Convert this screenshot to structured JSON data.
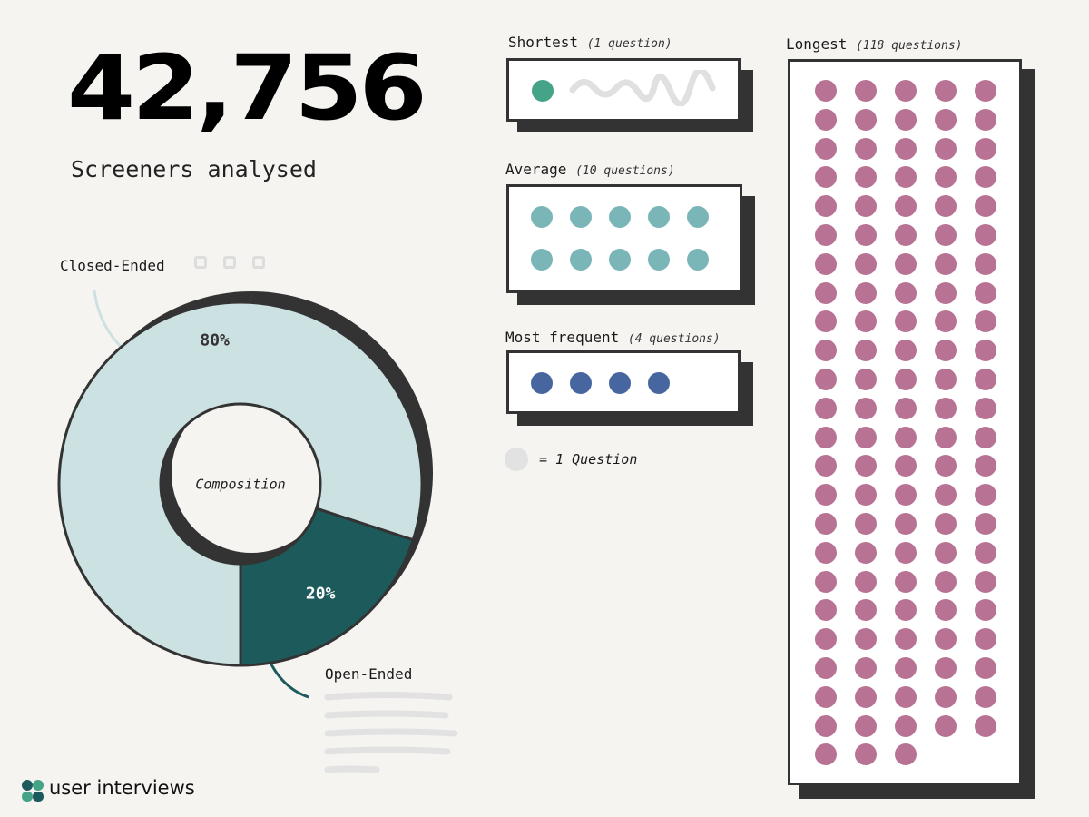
{
  "headline": {
    "number": "42,756",
    "subtitle": "Screeners analysed"
  },
  "chart_data": [
    {
      "type": "pie",
      "title": "",
      "center_label": "Composition",
      "slices": [
        {
          "label": "Closed-Ended",
          "value": 80,
          "display": "80%",
          "color": "#cce1e2"
        },
        {
          "label": "Open-Ended",
          "value": 20,
          "display": "20%",
          "color": "#1d5a5c"
        }
      ]
    },
    {
      "type": "unit",
      "unit_legend": "= 1 Question",
      "groups": [
        {
          "id": "shortest",
          "name": "Shortest",
          "note": "(1 question)",
          "count": 1,
          "color": "#45a388"
        },
        {
          "id": "average",
          "name": "Average",
          "note": "(10 questions)",
          "count": 10,
          "color": "#7ab5b8"
        },
        {
          "id": "frequent",
          "name": "Most frequent",
          "note": "(4 questions)",
          "count": 4,
          "color": "#4766a0"
        },
        {
          "id": "longest",
          "name": "Longest",
          "note": "(118 questions)",
          "count": 118,
          "color": "#b87394"
        }
      ]
    }
  ],
  "colors": {
    "background": "#f6f4f1",
    "shadow": "#333333",
    "legend_dot": "#e2e2e2"
  },
  "brand": {
    "name": "user interviews",
    "logo_icon": "user-interviews-logo-icon"
  }
}
